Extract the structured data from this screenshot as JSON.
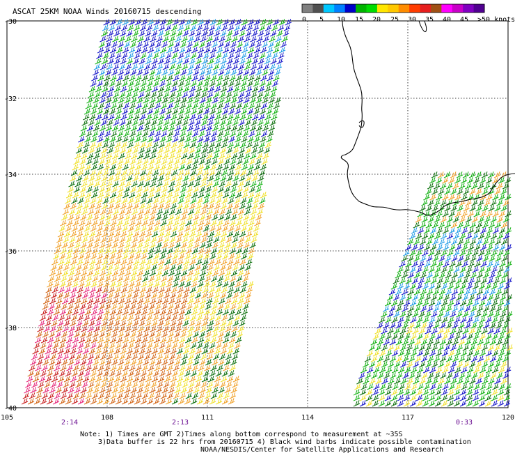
{
  "title": "ASCAT 25KM NOAA Winds 20160715 descending",
  "legend": {
    "colors": [
      "#808080",
      "#505050",
      "#00c8ff",
      "#0080ff",
      "#0000c8",
      "#00b400",
      "#00dc00",
      "#ffe600",
      "#ffc800",
      "#ff8c00",
      "#ff3c00",
      "#e61e1e",
      "#a05014",
      "#ff00ff",
      "#c800c8",
      "#8000c0",
      "#500090"
    ],
    "labels": [
      "0",
      "5",
      "10",
      "15",
      "20",
      "25",
      "30",
      "35",
      "40",
      "45",
      ">50 knots"
    ]
  },
  "axes": {
    "lon_labels": [
      "105",
      "108",
      "111",
      "114",
      "117",
      "120"
    ],
    "lat_labels": [
      "-30",
      "-32",
      "-34",
      "-36",
      "-38",
      "-40"
    ]
  },
  "times": [
    "2:14",
    "2:13",
    "0:33"
  ],
  "notes": [
    "Note: 1) Times are GMT 2)Times along bottom correspond to measurement at ~35S",
    "3)Data buffer is 22 hrs from 20160715 4) Black wind barbs indicate possible contamination",
    "NOAA/NESDIS/Center for Satellite Applications and Research"
  ],
  "colors": {
    "blue": "#1414c8",
    "cyan": "#1e9be6",
    "green": "#10b010",
    "dark_green": "#0a6e0a",
    "yellow": "#f0e028",
    "orange": "#f0a028",
    "dark_orange": "#d26414",
    "red": "#c81e1e",
    "pink": "#e6287a",
    "black": "#000000",
    "purple": "#6a0d91"
  }
}
